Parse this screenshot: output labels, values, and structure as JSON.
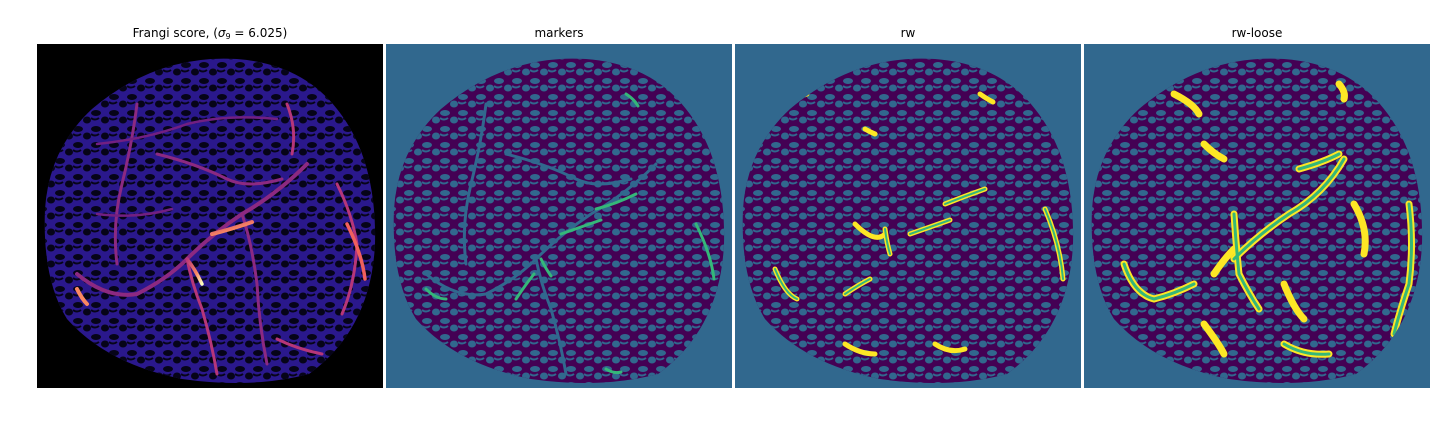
{
  "panels": [
    {
      "id": "frangi",
      "title_prefix": "Frangi score, (",
      "title_sigma": "σ",
      "title_subscript": "9",
      "title_suffix": " = 6.025)",
      "colormap": "magma-like",
      "background": "#000000",
      "tissue_color": "#2a188c",
      "pores_color": "#060418"
    },
    {
      "id": "markers",
      "title": "markers",
      "background": "#31688e",
      "tissue_color": "#440154",
      "marker_color": "#35b779"
    },
    {
      "id": "rw",
      "title": "rw",
      "background": "#31688e",
      "tissue_color": "#440154",
      "vessel_core": "#35b779",
      "vessel_edge": "#fde725"
    },
    {
      "id": "rw-loose",
      "title": "rw-loose",
      "background": "#31688e",
      "tissue_color": "#440154",
      "vessel_core": "#35b779",
      "vessel_edge": "#fde725"
    }
  ]
}
